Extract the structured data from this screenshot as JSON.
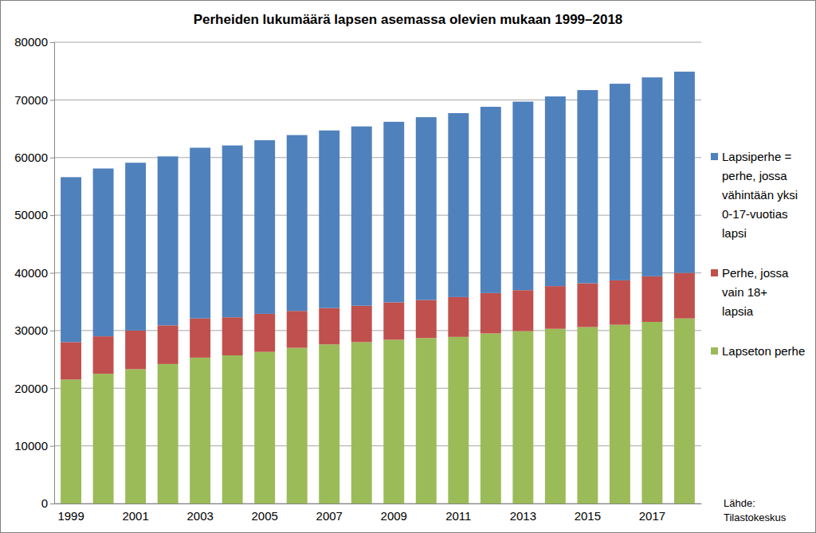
{
  "chart_data": {
    "type": "bar",
    "title": "Perheiden lukumäärä lapsen asemassa olevien mukaan 1999–2018",
    "stacked": true,
    "grid": true,
    "legend": "right",
    "categories": [
      "1999",
      null,
      "2001",
      null,
      "2003",
      null,
      "2005",
      null,
      "2007",
      null,
      "2009",
      null,
      "2011",
      null,
      "2013",
      null,
      "2015",
      null,
      "2017",
      null
    ],
    "series": [
      {
        "name": "Lapseton perhe",
        "color": "#9bbb59",
        "values": [
          21500,
          22500,
          23300,
          24200,
          25300,
          25700,
          26300,
          27000,
          27600,
          28000,
          28400,
          28700,
          28900,
          29500,
          29900,
          30300,
          30600,
          31000,
          31500,
          32100
        ]
      },
      {
        "name": "Perhe, jossa vain 18+ lapsia",
        "color": "#c0504d",
        "values": [
          6500,
          6500,
          6700,
          6700,
          6800,
          6600,
          6600,
          6400,
          6300,
          6300,
          6500,
          6600,
          6900,
          7000,
          7100,
          7400,
          7600,
          7700,
          7900,
          7900
        ]
      },
      {
        "name": "Lapsiperhe = perhe, jossa vähintään yksi 0-17-vuotias lapsi",
        "color": "#4f81bd",
        "values": [
          28600,
          29100,
          29100,
          29300,
          29600,
          29800,
          30100,
          30500,
          30800,
          31100,
          31300,
          31700,
          31900,
          32300,
          32700,
          32900,
          33500,
          34100,
          34500,
          34900
        ]
      }
    ],
    "ylim": [
      0,
      80000
    ],
    "yticks": [
      0,
      10000,
      20000,
      30000,
      40000,
      50000,
      60000,
      70000,
      80000
    ],
    "annotations": [
      "Lähde:",
      "Tilastokeskus"
    ]
  }
}
